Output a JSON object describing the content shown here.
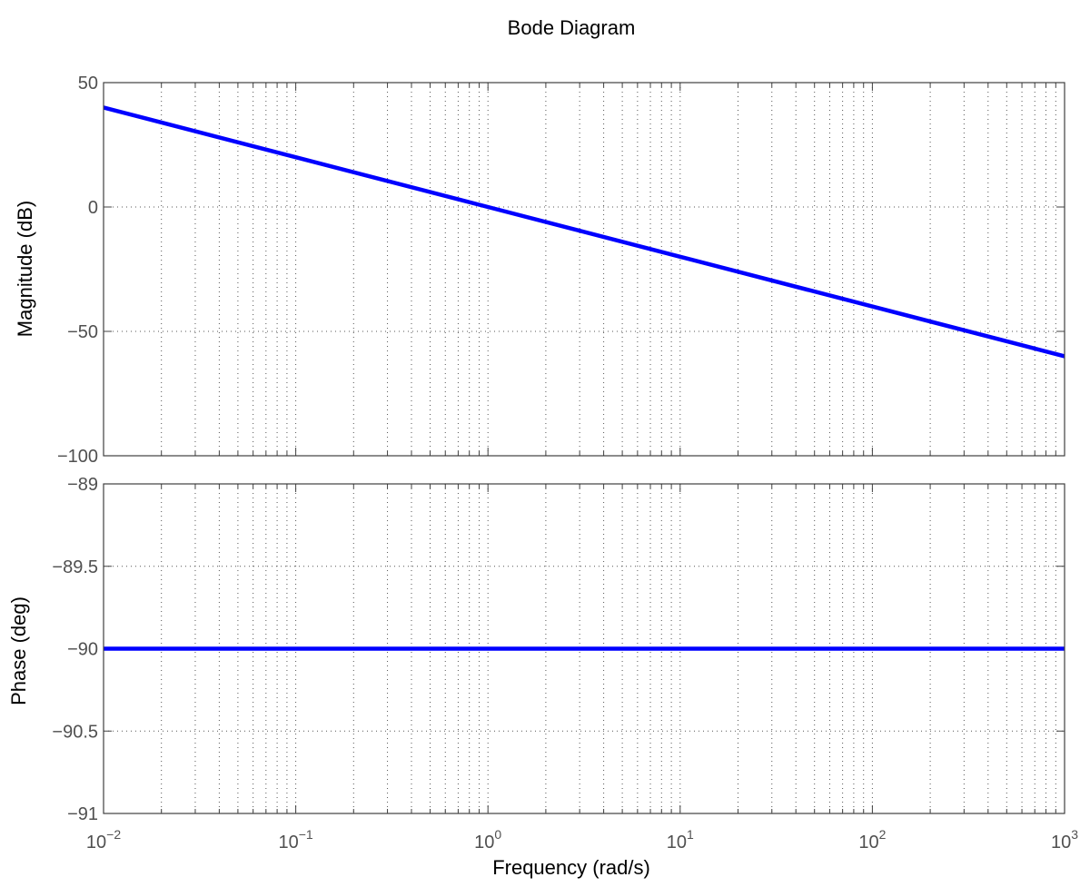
{
  "chart_data": {
    "type": "line",
    "title": "Bode Diagram",
    "xlabel": "Frequency  (rad/s)",
    "xscale": "log",
    "xlim": [
      0.01,
      1000
    ],
    "x_ticks": [
      {
        "base": "10",
        "exp": "−2"
      },
      {
        "base": "10",
        "exp": "−1"
      },
      {
        "base": "10",
        "exp": "0"
      },
      {
        "base": "10",
        "exp": "1"
      },
      {
        "base": "10",
        "exp": "2"
      },
      {
        "base": "10",
        "exp": "3"
      }
    ],
    "grid": true,
    "colors": {
      "line": "#0000ff",
      "axes": "#404040",
      "grid": "#555555"
    },
    "panels": [
      {
        "ylabel": "Magnitude (dB)",
        "ylim": [
          -100,
          50
        ],
        "y_ticks": [
          -100,
          -50,
          0,
          50
        ],
        "y_tick_labels": [
          "−100",
          "−50",
          "0",
          "50"
        ],
        "series": [
          {
            "x": [
              0.01,
              0.1,
              1,
              10,
              100,
              1000
            ],
            "y": [
              40,
              20,
              0,
              -20,
              -40,
              -60
            ]
          }
        ]
      },
      {
        "ylabel": "Phase (deg)",
        "ylim": [
          -91,
          -89
        ],
        "y_ticks": [
          -91,
          -90.5,
          -90,
          -89.5,
          -89
        ],
        "y_tick_labels": [
          "−91",
          "−90.5",
          "−90",
          "−89.5",
          "−89"
        ],
        "series": [
          {
            "x": [
              0.01,
              1000
            ],
            "y": [
              -90,
              -90
            ]
          }
        ]
      }
    ]
  }
}
